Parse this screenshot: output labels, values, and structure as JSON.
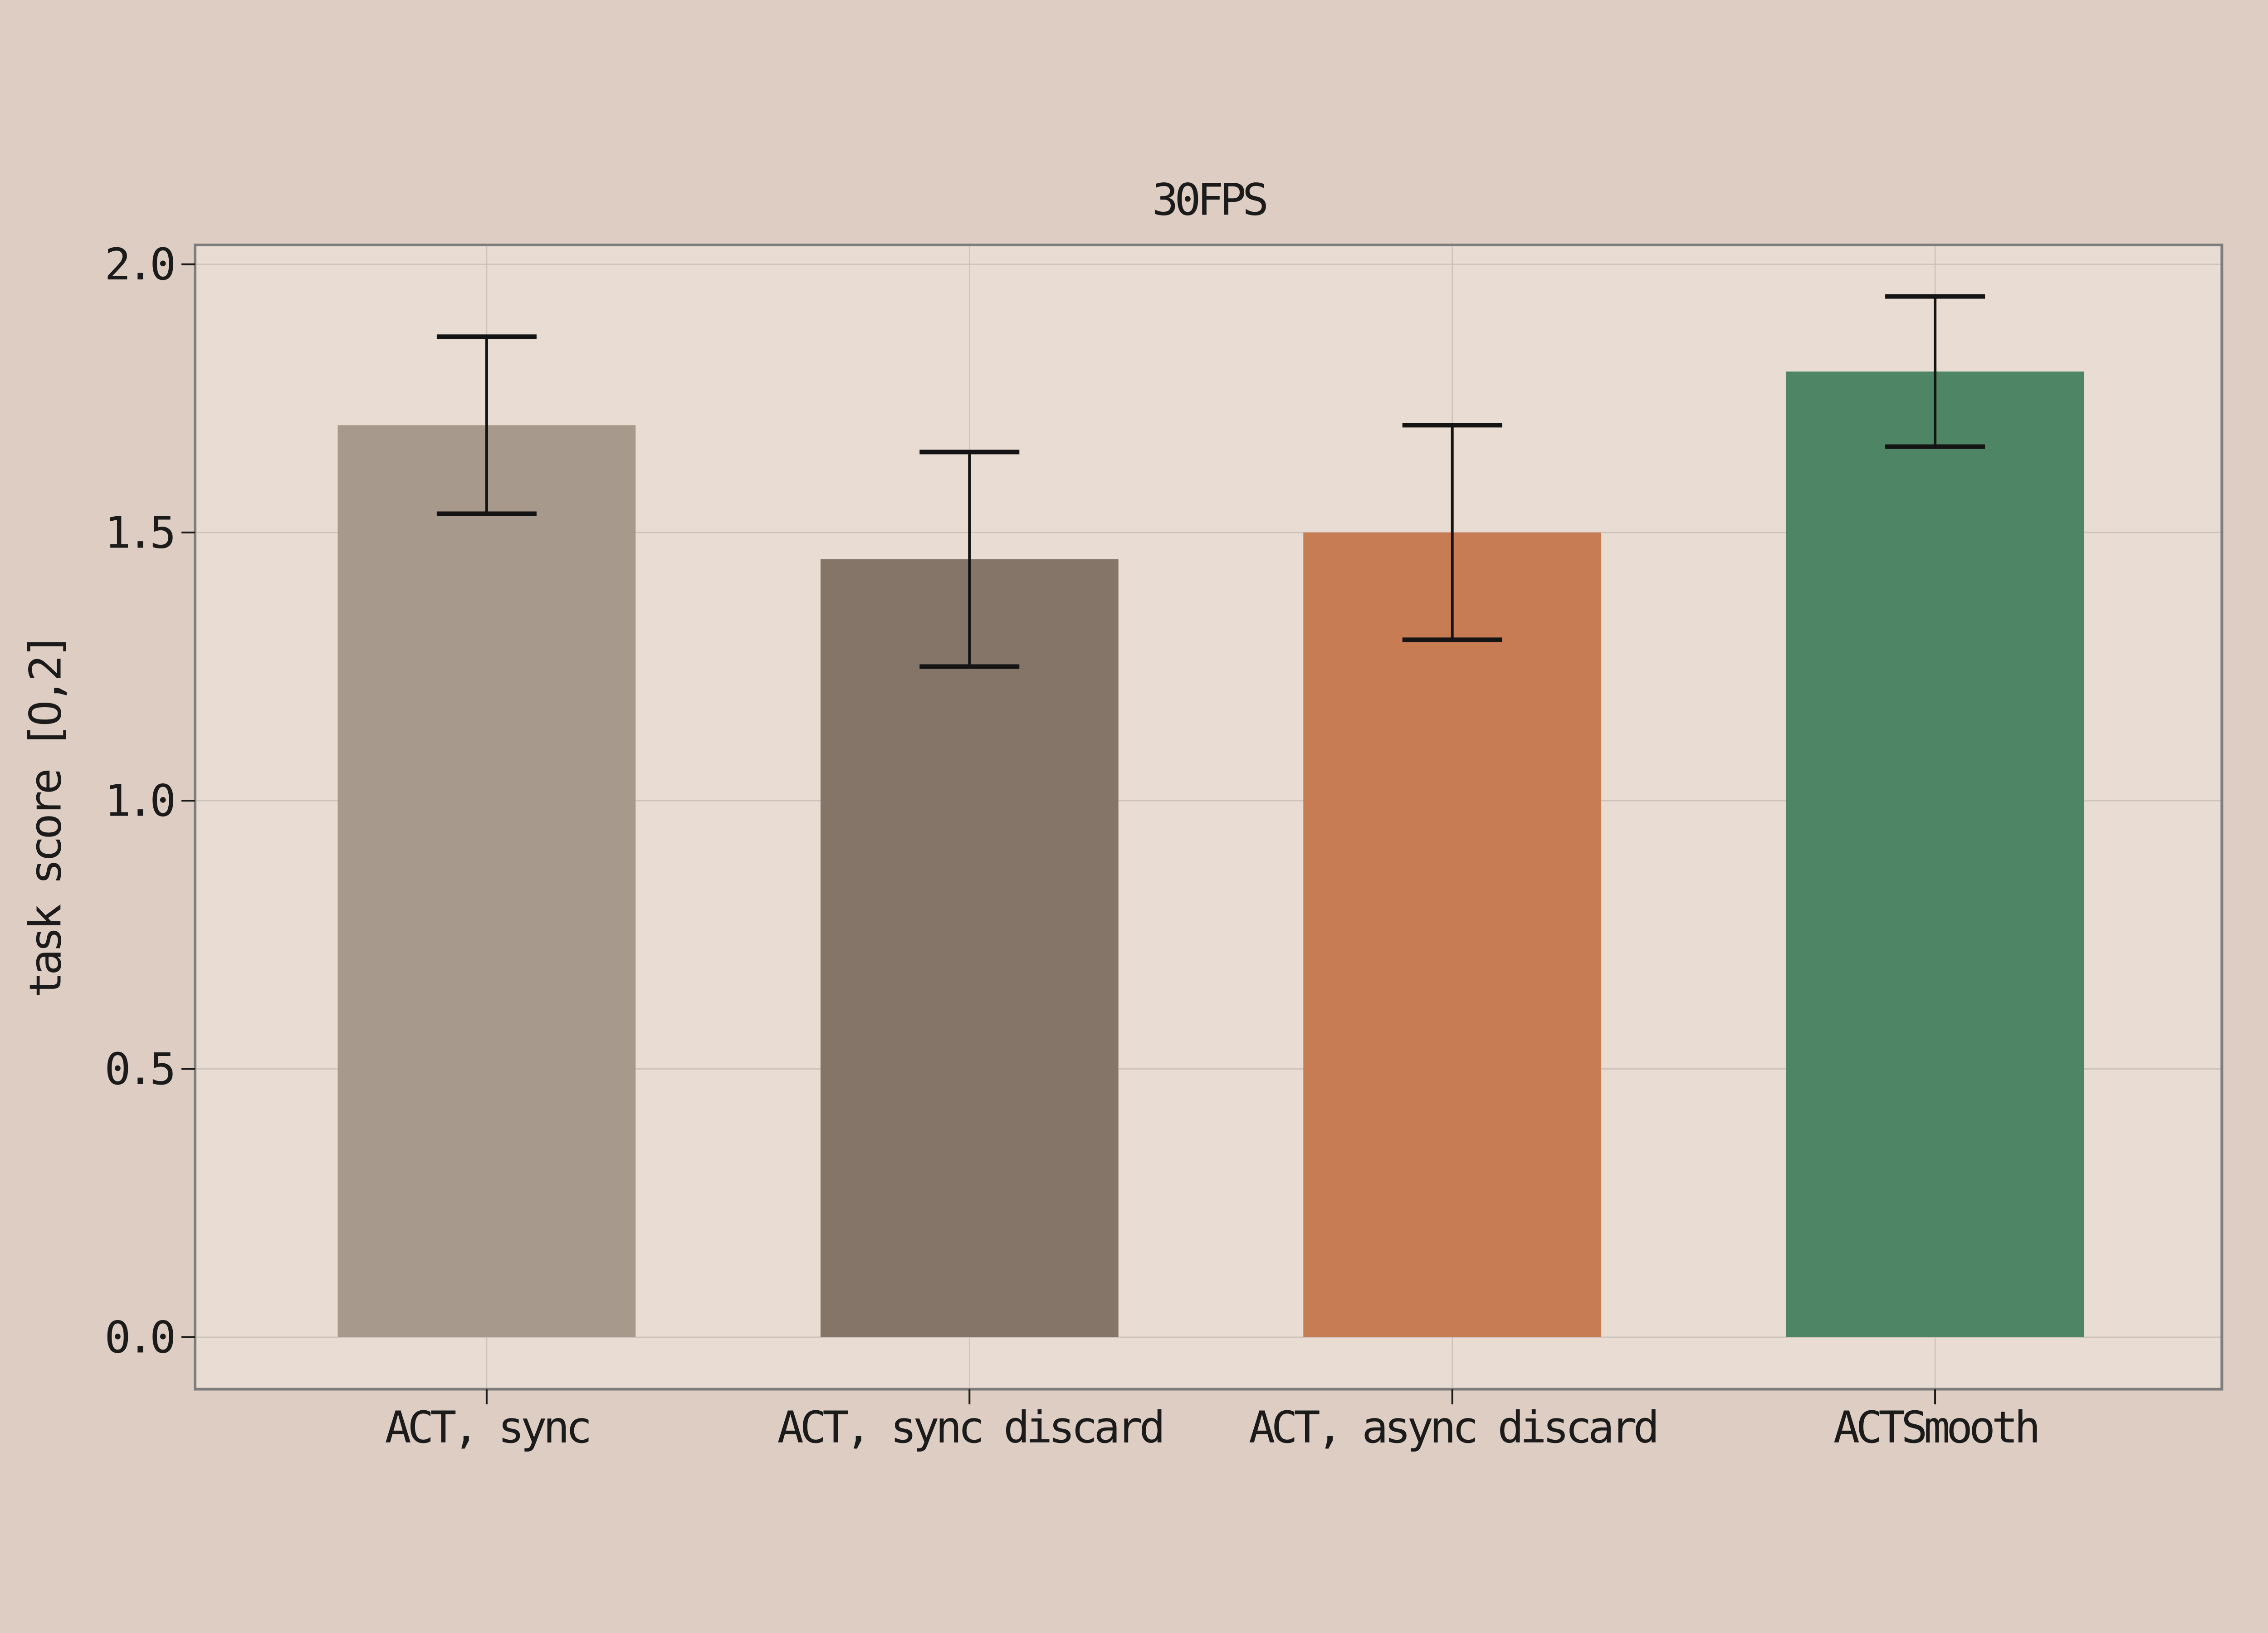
{
  "figure": {
    "background_color": "#decdc2",
    "axes_background_color": "#e8dcd3",
    "grid_color": "#cdc3ba",
    "spine_color": "#7d7d7d",
    "tick_color": "#1b1b1b",
    "text_color": "#1b1b1b",
    "error_bar_color": "#141414"
  },
  "chart_data": {
    "type": "bar",
    "title": "30FPS",
    "xlabel": "",
    "ylabel": "task score [O,2]",
    "categories": [
      "ACT, sync",
      "ACT, sync discard",
      "ACT, async discard",
      "ACTSmooth"
    ],
    "values": [
      1.7,
      1.45,
      1.5,
      1.8
    ],
    "error_low": [
      1.535,
      1.25,
      1.3,
      1.66
    ],
    "error_high": [
      1.865,
      1.65,
      1.7,
      1.94
    ],
    "bar_colors": [
      "#a7998b",
      "#857569",
      "#c77c54",
      "#4e8564"
    ],
    "yticks": [
      "0.0",
      "0.5",
      "1.0",
      "1.5",
      "2.0"
    ],
    "ytick_values": [
      0,
      0.5,
      1,
      1.5,
      2
    ],
    "ylim": [
      -0.097,
      2.036
    ],
    "xlim": [
      -0.604,
      3.594
    ],
    "grid": true,
    "grid_axes": "both",
    "legend_position": "none",
    "bar_width_fraction": 0.617
  }
}
